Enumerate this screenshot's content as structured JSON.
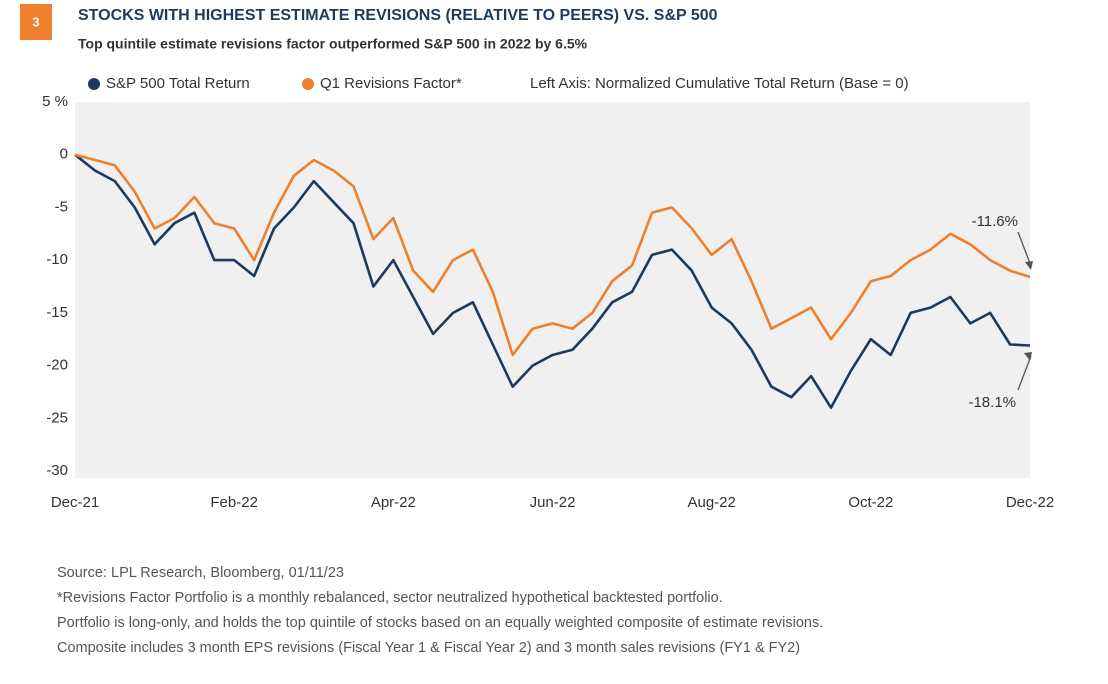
{
  "badge": "3",
  "chart_data": {
    "type": "line",
    "title": "STOCKS WITH HIGHEST ESTIMATE REVISIONS (RELATIVE TO PEERS) VS. S&P 500",
    "subtitle": "Top quintile estimate revisions factor outperformed S&P 500 in 2022 by 6.5%",
    "axis_note": "Left Axis: Normalized Cumulative Total Return (Base = 0)",
    "categories": [
      "Dec-21",
      null,
      null,
      null,
      null,
      null,
      null,
      null,
      "Feb-22",
      null,
      null,
      null,
      null,
      null,
      null,
      null,
      "Apr-22",
      null,
      null,
      null,
      null,
      null,
      null,
      null,
      "Jun-22",
      null,
      null,
      null,
      null,
      null,
      null,
      null,
      "Aug-22",
      null,
      null,
      null,
      null,
      null,
      null,
      null,
      "Oct-22",
      null,
      null,
      null,
      null,
      null,
      null,
      null,
      "Dec-22"
    ],
    "series": [
      {
        "name": "S&P 500 Total Return",
        "color": "#1d3a5e",
        "values": [
          0,
          -1.5,
          -2.5,
          -5,
          -8.5,
          -6.5,
          -5.5,
          -10,
          -10,
          -11.5,
          -7,
          -5,
          -2.5,
          -4.5,
          -6.5,
          -12.5,
          -10,
          -13.5,
          -17,
          -15,
          -14,
          -18,
          -22,
          -20,
          -19,
          -18.5,
          -16.5,
          -14,
          -13,
          -9.5,
          -9,
          -11,
          -14.5,
          -16,
          -18.5,
          -22,
          -23,
          -21,
          -24,
          -20.5,
          -17.5,
          -19,
          -15,
          -14.5,
          -13.5,
          -16,
          -15,
          -18,
          -18.1
        ]
      },
      {
        "name": "Q1 Revisions Factor*",
        "color": "#f07f2d",
        "values": [
          0,
          -0.5,
          -1,
          -3.5,
          -7,
          -6,
          -4,
          -6.5,
          -7,
          -10,
          -5.5,
          -2,
          -0.5,
          -1.5,
          -3,
          -8,
          -6,
          -11,
          -13,
          -10,
          -9,
          -13,
          -19,
          -16.5,
          -16,
          -16.5,
          -15,
          -12,
          -10.5,
          -5.5,
          -5,
          -7,
          -9.5,
          -8,
          -12,
          -16.5,
          -15.5,
          -14.5,
          -17.5,
          -15,
          -12,
          -11.5,
          -10,
          -9,
          -7.5,
          -8.5,
          -10,
          -11,
          -11.6
        ]
      }
    ],
    "ylim": [
      -30,
      5
    ],
    "yticks": [
      {
        "value": 5,
        "label": "5 %"
      },
      0,
      -5,
      -10,
      -15,
      -20,
      -25,
      -30
    ],
    "annotations": [
      "-11.6%",
      "-18.1%"
    ]
  },
  "footnotes": [
    "Source: LPL Research, Bloomberg,  01/11/23",
    "*Revisions Factor Portfolio is a monthly rebalanced, sector neutralized hypothetical backtested portfolio.",
    "Portfolio is long-only, and holds the top quintile of stocks based on an equally weighted composite of estimate revisions.",
    "Composite includes 3 month EPS revisions (Fiscal Year 1 & Fiscal Year 2) and 3 month sales revisions (FY1 & FY2)"
  ]
}
